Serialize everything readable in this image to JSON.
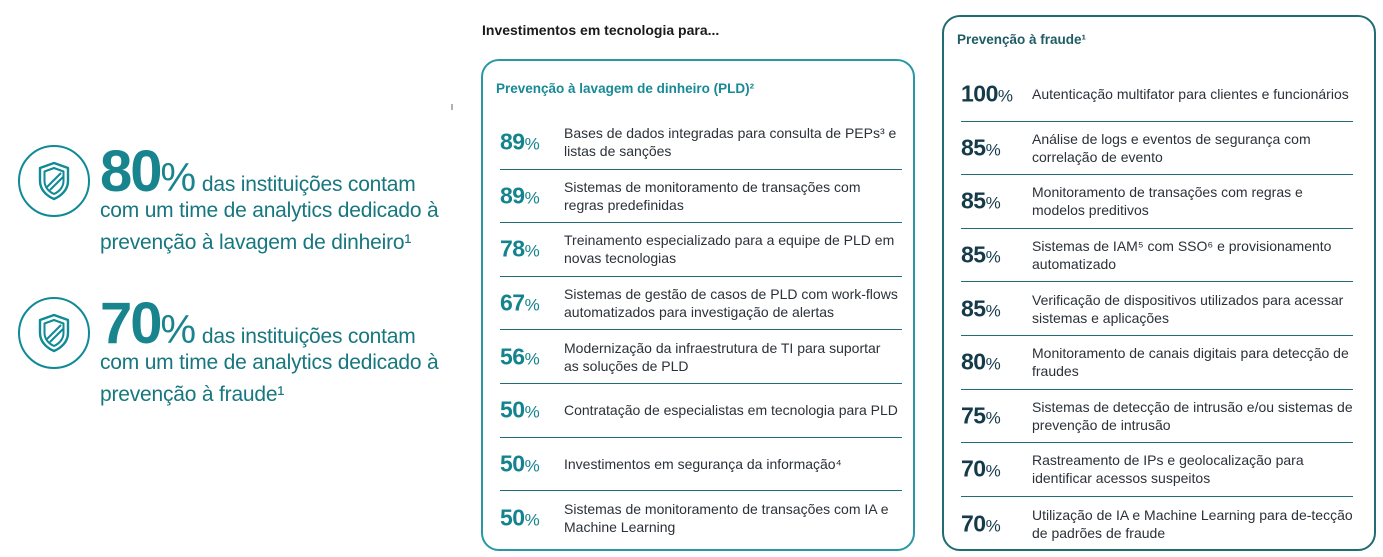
{
  "stats": [
    {
      "value": "80",
      "unit": "%",
      "line1": "das instituições contam",
      "rest": "com um time de analytics dedicado à prevenção à lavagem de dinheiro¹",
      "icon": "shield-icon"
    },
    {
      "value": "70",
      "unit": "%",
      "line1": "das instituições contam",
      "rest": "com um time de analytics dedicado à prevenção à fraude¹",
      "icon": "shield-icon"
    }
  ],
  "middle": {
    "heading": "Investimentos em tecnologia para...",
    "title": "Prevenção à lavagem de dinheiro (PLD)²",
    "items": [
      {
        "value": "89",
        "unit": "%",
        "text": "Bases de dados integradas para consulta de PEPs³ e listas de sanções"
      },
      {
        "value": "89",
        "unit": "%",
        "text": "Sistemas de monitoramento de transações com regras predefinidas"
      },
      {
        "value": "78",
        "unit": "%",
        "text": "Treinamento especializado para a equipe de PLD em novas tecnologias"
      },
      {
        "value": "67",
        "unit": "%",
        "text": "Sistemas de gestão de casos de PLD com work-flows automatizados para investigação de alertas"
      },
      {
        "value": "56",
        "unit": "%",
        "text": "Modernização da infraestrutura de TI para suportar as soluções de PLD"
      },
      {
        "value": "50",
        "unit": "%",
        "text": "Contratação de especialistas em tecnologia para PLD"
      },
      {
        "value": "50",
        "unit": "%",
        "text": "Investimentos em segurança da informação⁴"
      },
      {
        "value": "50",
        "unit": "%",
        "text": "Sistemas de monitoramento de transações com IA e Machine Learning"
      }
    ]
  },
  "right": {
    "title": "Prevenção à fraude¹",
    "items": [
      {
        "value": "100",
        "unit": "%",
        "text": "Autenticação multifator para clientes e funcionários"
      },
      {
        "value": "85",
        "unit": "%",
        "text": "Análise de logs e eventos de segurança com correlação de evento"
      },
      {
        "value": "85",
        "unit": "%",
        "text": "Monitoramento de transações com regras e modelos preditivos"
      },
      {
        "value": "85",
        "unit": "%",
        "text": "Sistemas de IAM⁵ com SSO⁶ e provisionamento automatizado"
      },
      {
        "value": "85",
        "unit": "%",
        "text": "Verificação de dispositivos utilizados para acessar sistemas e aplicações"
      },
      {
        "value": "80",
        "unit": "%",
        "text": "Monitoramento de canais digitais para detecção de fraudes"
      },
      {
        "value": "75",
        "unit": "%",
        "text": "Sistemas de detecção de intrusão e/ou sistemas de prevenção de intrusão"
      },
      {
        "value": "70",
        "unit": "%",
        "text": "Rastreamento de IPs e geolocalização para identificar acessos suspeitos"
      },
      {
        "value": "70",
        "unit": "%",
        "text": "Utilização de IA e Machine Learning para de-tecção de padrões de fraude"
      }
    ]
  },
  "colors": {
    "accent": "#17848e",
    "panel_border_mid": "#2a98a4",
    "panel_border_right": "#1f6c72",
    "dark_value": "#153a4a"
  }
}
